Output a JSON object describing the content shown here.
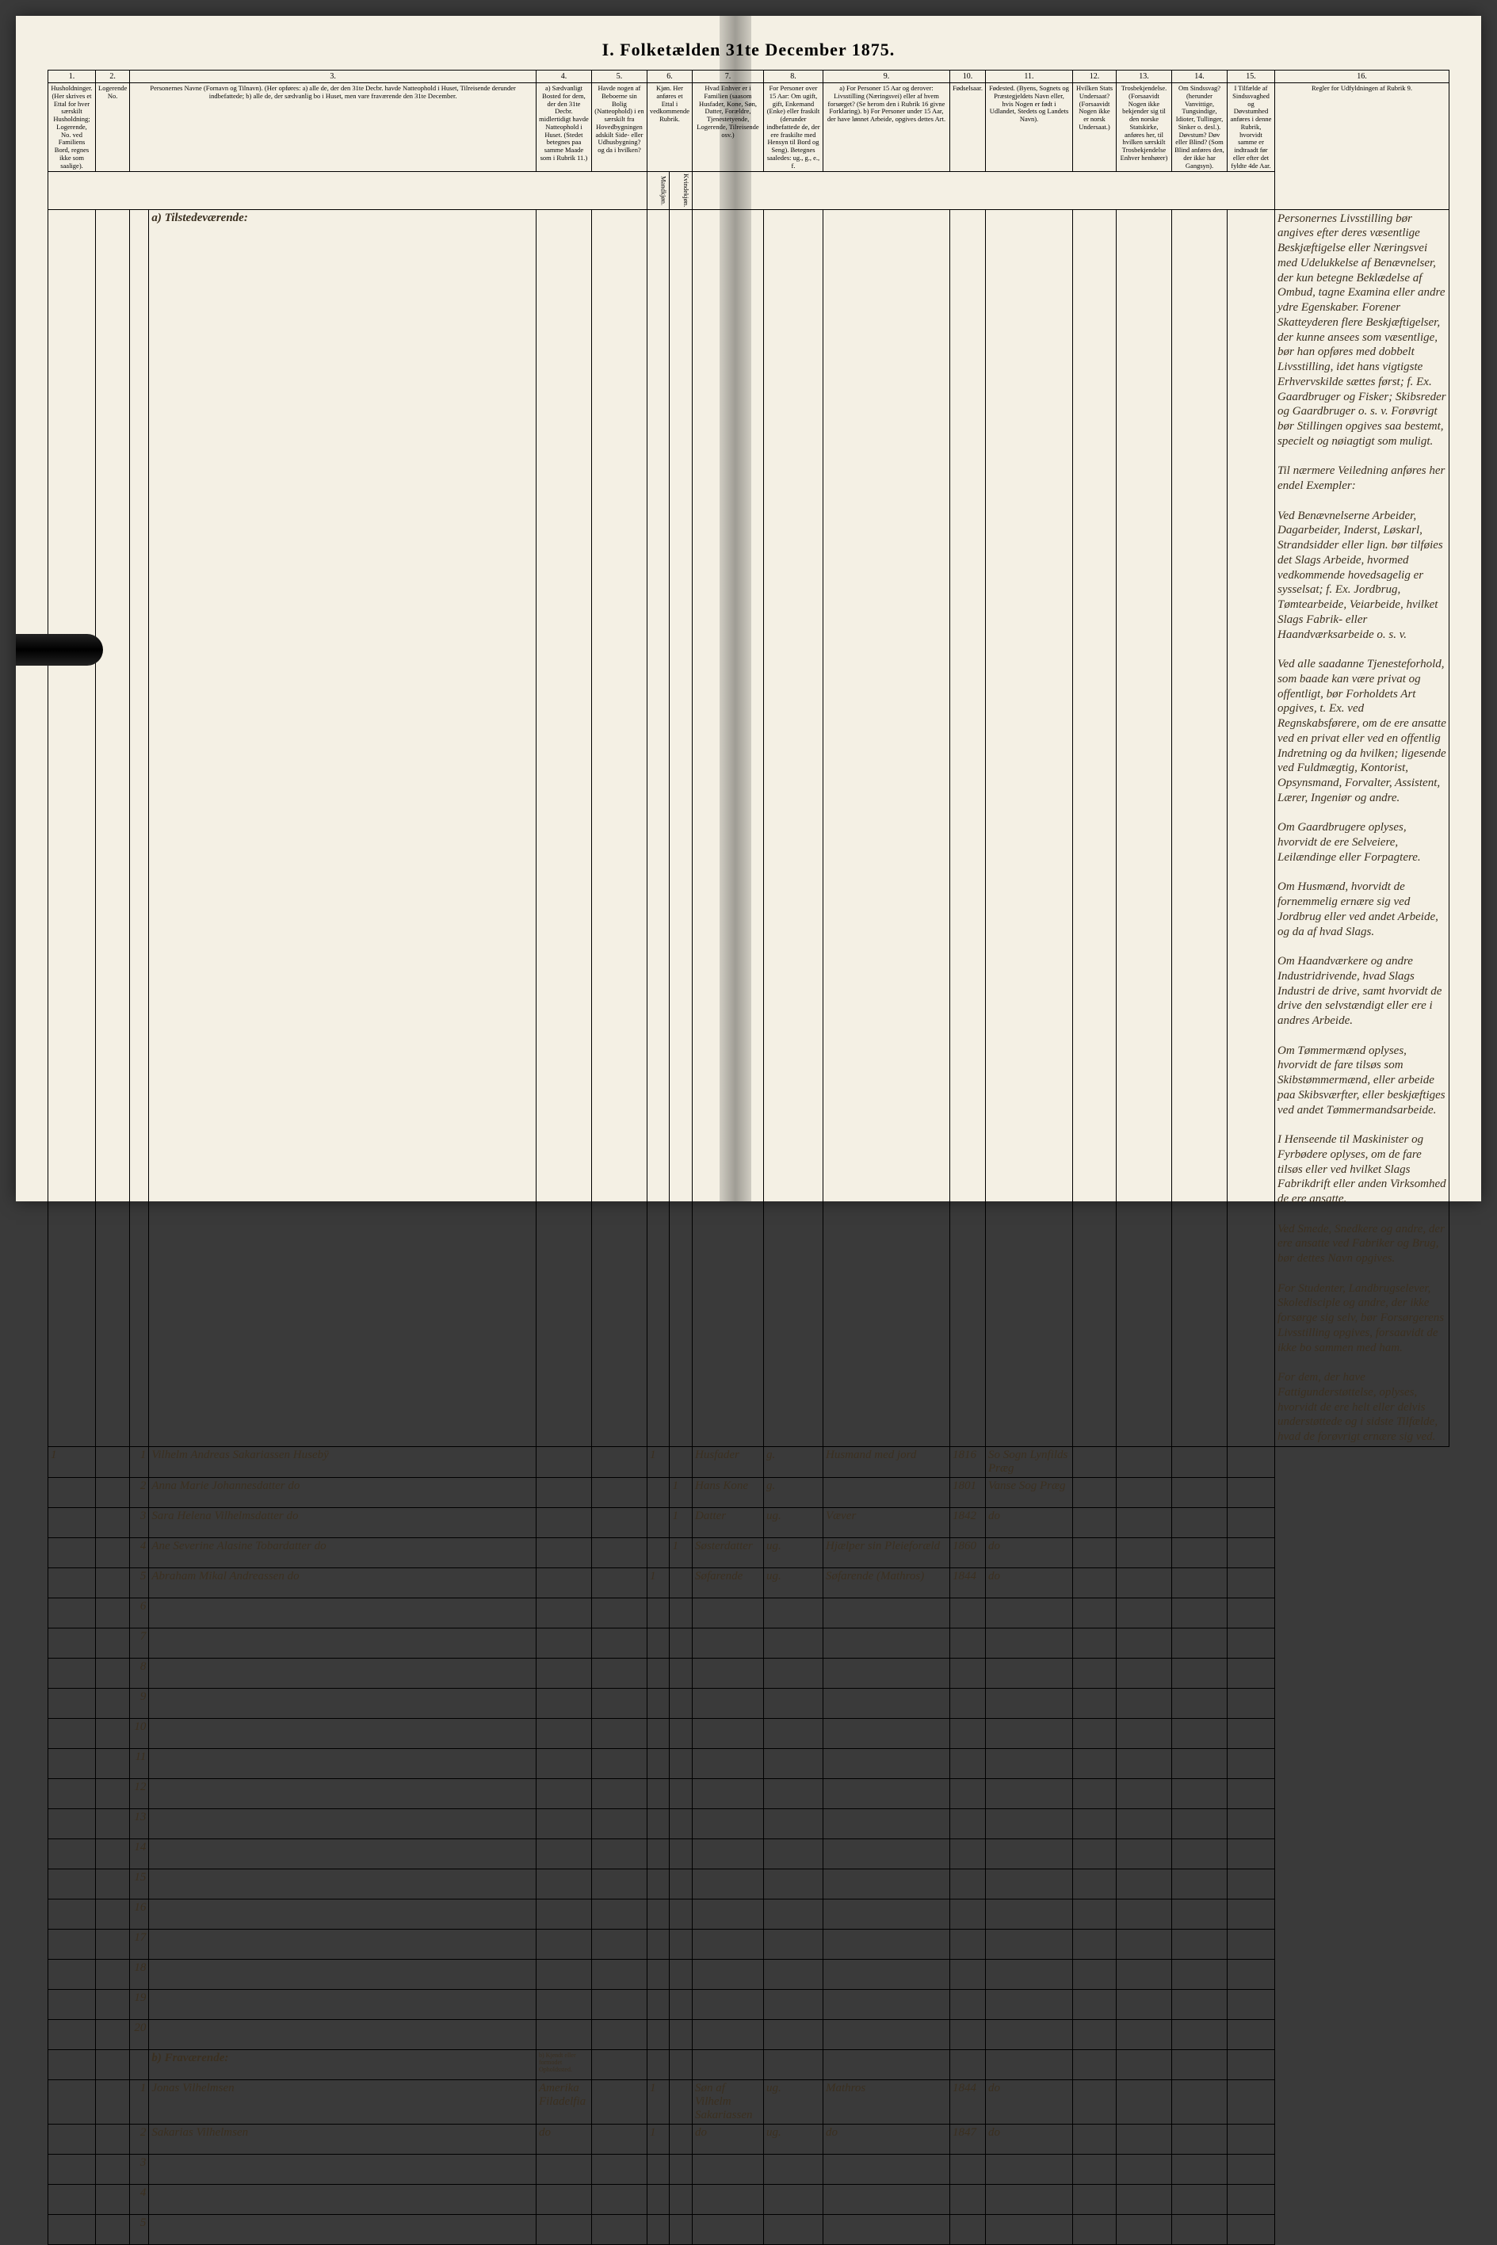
{
  "title": "I. Folketælden 31te December 1875.",
  "columns": {
    "c1": "1.",
    "c2": "2.",
    "c3": "3.",
    "c4": "4.",
    "c5": "5.",
    "c6": "6.",
    "c7": "7.",
    "c8": "8.",
    "c9": "9.",
    "c10": "10.",
    "c11": "11.",
    "c12": "12.",
    "c13": "13.",
    "c14": "14.",
    "c15": "15.",
    "c16": "16."
  },
  "headers": {
    "h1": "Husholdninger. (Her skrives et Ettal for hver særskilt Husholdning; Logerende, No. ved Familiens Bord, regnes ikke som saalige).",
    "h2": "Logerende No.",
    "h3": "Personernes Navne (Fornavn og Tilnavn). (Her opføres: a) alle de, der den 31te Decbr. havde Natteophold i Huset, Tilreisende derunder indbefattede; b) alle de, der sædvanlig bo i Huset, men vare fraværende den 31te December.",
    "h4": "a) Sædvanligt Bosted for dem, der den 31te Decbr. midlertidigt havde Natteophold i Huset. (Stedet betegnes paa samme Maade som i Rubrik 11.)",
    "h5": "Havde nogen af Beboerne sin Bolig (Natteophold) i en særskilt fra Hovedbygningen adskilt Side- eller Udhusbygning? og da i hvilken?",
    "h6a": "Kjøn. Her anføres et Ettal i vedkommende Rubrik.",
    "h6b": "Mandkjøn.",
    "h6c": "Kvindekjøn.",
    "h7": "Hvad Enhver er i Familien (saasom Husfader, Kone, Søn, Datter, Forældre, Tjenestetyende, Logerende, Tilreisende osv.)",
    "h8": "For Personer over 15 Aar: Om ugift, gift, Enkemand (Enke) eller fraskilt (derunder indbefattede de, der ere fraskilte med Hensyn til Bord og Seng). Betegnes saaledes: ug., g., e., f.",
    "h9": "a) For Personer 15 Aar og derover: Livsstilling (Næringsvei) eller af hvem forsørget? (Se herom den i Rubrik 16 givne Forklaring). b) For Personer under 15 Aar, der have lønnet Arbeide, opgives dettes Art.",
    "h10": "Fødselsaar.",
    "h11": "Fødested. (Byens, Sognets og Præstegjeldets Navn eller, hvis Nogen er født i Udlandet, Stedets og Landets Navn).",
    "h12": "Hvilken Stats Undersaat? (Forsaavidt Nogen ikke er norsk Undersaat.)",
    "h13": "Trosbekjendelse. (Forsaavidt Nogen ikke bekjender sig til den norske Statskirke, anføres her, til hvilken særskilt Trosbekjendelse Enhver henhører)",
    "h14": "Om Sindssvag? (herunder Vanvittige, Tungsindige, Idioter, Tullinger, Sinker o. desl.). Døvstum? Døv eller Blind? (Som Blind anføres den, der ikke har Gangsyn).",
    "h15": "I Tilfælde af Sindssvaghed og Døvstumhed anføres i denne Rubrik, hvorvidt samme er indtraadt før eller efter det fyldte 4de Aar.",
    "h16": "Regler for Udfyldningen af Rubrik 9."
  },
  "section_a": "a) Tilstedeværende:",
  "section_b": "b) Fraværende:",
  "section_b_col4": "b) Kjendt eller formodet Opholdssted.",
  "rows_a": [
    {
      "n": "1",
      "hh": "1",
      "name": "Vilhelm Andreas Sakariassen Husebÿ",
      "c6a": "1",
      "c7": "Husfader",
      "c8": "g.",
      "c9": "Husmand med jord",
      "c10": "1816",
      "c11": "So Sogn Lynfilds Præg"
    },
    {
      "n": "2",
      "hh": "",
      "name": "Anna Marie Johannesdatter do",
      "c6b": "1",
      "c7": "Hans Kone",
      "c8": "g.",
      "c9": "",
      "c10": "1801",
      "c11": "Vanse Sog Præg"
    },
    {
      "n": "3",
      "hh": "",
      "name": "Sara Helena Vilhelmsdatter do",
      "c6b": "1",
      "c7": "Datter",
      "c8": "ug.",
      "c9": "Væver",
      "c10": "1842",
      "c11": "do"
    },
    {
      "n": "4",
      "hh": "",
      "name": "Ane Severine Alasine Tobardatter do",
      "c6b": "1",
      "c7": "Søsterdatter",
      "c8": "ug.",
      "c9": "Hjælper sin Pleieforæld",
      "c10": "1860",
      "c11": "do"
    },
    {
      "n": "5",
      "hh": "",
      "name": "Abraham Mikal Andreassen do",
      "c6a": "1",
      "c7": "Søfarende",
      "c8": "ug.",
      "c9": "Søfarende (Mathros)",
      "c10": "1844",
      "c11": "do"
    },
    {
      "n": "6"
    },
    {
      "n": "7"
    },
    {
      "n": "8"
    },
    {
      "n": "9"
    },
    {
      "n": "10"
    },
    {
      "n": "11"
    },
    {
      "n": "12"
    },
    {
      "n": "13"
    },
    {
      "n": "14"
    },
    {
      "n": "15"
    },
    {
      "n": "16"
    },
    {
      "n": "17"
    },
    {
      "n": "18"
    },
    {
      "n": "19"
    },
    {
      "n": "20"
    }
  ],
  "rows_b": [
    {
      "n": "1",
      "name": "Jonas Vilhelmsen",
      "c4": "Amerika Filadelfia",
      "c6a": "1",
      "c7": "Søn af Vilhelm Sakariassen",
      "c8": "ug.",
      "c9": "Mathros",
      "c10": "1844",
      "c11": "do"
    },
    {
      "n": "2",
      "name": "Sakarias Vilhelmsen",
      "c4": "do",
      "c6a": "1",
      "c7": "do",
      "c8": "ug.",
      "c9": "do",
      "c10": "1847",
      "c11": "do"
    },
    {
      "n": "3"
    },
    {
      "n": "4"
    },
    {
      "n": "5"
    }
  ],
  "rules_text": "Personernes Livsstilling bør angives efter deres væsentlige Beskjæftigelse eller Næringsvei med Udelukkelse af Benævnelser, der kun betegne Beklædelse af Ombud, tagne Examina eller andre ydre Egenskaber. Forener Skatteyderen flere Beskjæftigelser, der kunne ansees som væsentlige, bør han opføres med dobbelt Livsstilling, idet hans vigtigste Erhvervskilde sættes først; f. Ex. Gaardbruger og Fisker; Skibsreder og Gaardbruger o. s. v. Forøvrigt bør Stillingen opgives saa bestemt, specielt og nøiagtigt som muligt.\n\nTil nærmere Veiledning anføres her endel Exempler:\n\nVed Benævnelserne Arbeider, Dagarbeider, Inderst, Løskarl, Strandsidder eller lign. bør tilføies det Slags Arbeide, hvormed vedkommende hovedsagelig er sysselsat; f. Ex. Jordbrug, Tømtearbeide, Veiarbeide, hvilket Slags Fabrik- eller Haandværksarbeide o. s. v.\n\nVed alle saadanne Tjenesteforhold, som baade kan være privat og offentligt, bør Forholdets Art opgives, t. Ex. ved Regnskabsførere, om de ere ansatte ved en privat eller ved en offentlig Indretning og da hvilken; ligesende ved Fuldmægtig, Kontorist, Opsynsmand, Forvalter, Assistent, Lærer, Ingeniør og andre.\n\nOm Gaardbrugere oplyses, hvorvidt de ere Selveiere, Leilændinge eller Forpagtere.\n\nOm Husmænd, hvorvidt de fornemmelig ernære sig ved Jordbrug eller ved andet Arbeide, og da af hvad Slags.\n\nOm Haandværkere og andre Industridrivende, hvad Slags Industri de drive, samt hvorvidt de drive den selvstændigt eller ere i andres Arbeide.\n\nOm Tømmermænd oplyses, hvorvidt de fare tilsøs som Skibstømmermænd, eller arbeide paa Skibsværfter, eller beskjæftiges ved andet Tømmermandsarbeide.\n\nI Henseende til Maskinister og Fyrbødere oplyses, om de fare tilsøs eller ved hvilket Slags Fabrikdrift eller anden Virksomhed de ere ansatte.\n\nVed Smede, Snedkere og andre, der ere ansatte ved Fabriker og Brug, bør dettes Navn opgives.\n\nFor Studenter, Landbrugselever, Skoledisciple og andre, der ikke forsørge sig selv, bør Forsørgerens Livsstilling opgives, forsaavidt de ikke bo sammen med ham.\n\nFor dem, der have Fattigunderstøttelse, oplyses, hvorvidt de ere helt eller delvis understøttede og i sidste Tilfælde, hvad de forøvrigt ernære sig ved."
}
